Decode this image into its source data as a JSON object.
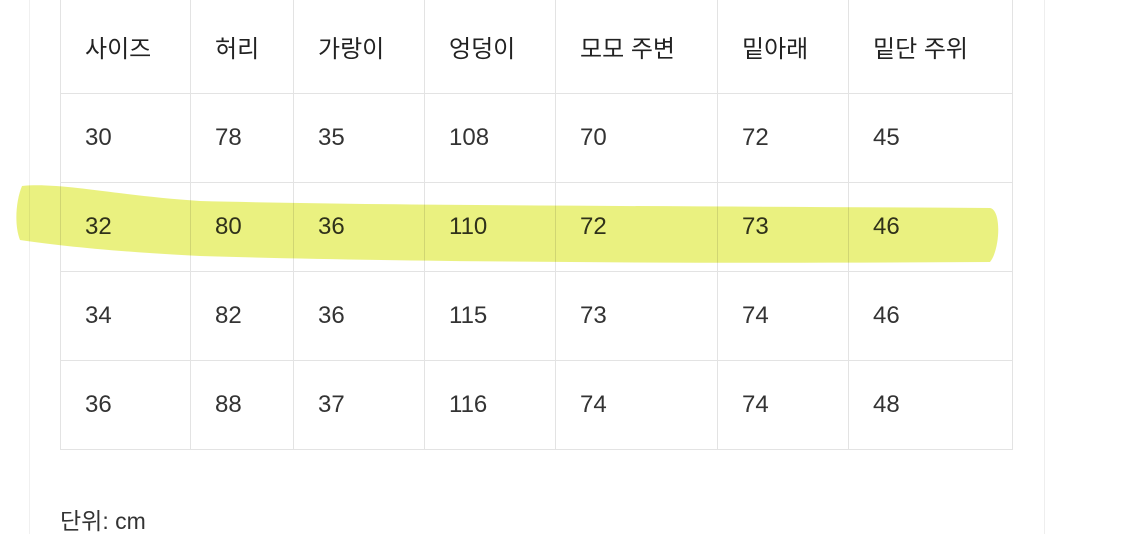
{
  "table": {
    "headers": [
      "사이즈",
      "허리",
      "가랑이",
      "엉덩이",
      "모모 주변",
      "밑아래",
      "밑단 주위"
    ],
    "rows": [
      [
        "30",
        "78",
        "35",
        "108",
        "70",
        "72",
        "45"
      ],
      [
        "32",
        "80",
        "36",
        "110",
        "72",
        "73",
        "46"
      ],
      [
        "34",
        "82",
        "36",
        "115",
        "73",
        "74",
        "46"
      ],
      [
        "36",
        "88",
        "37",
        "116",
        "74",
        "74",
        "48"
      ]
    ],
    "highlighted_row": 1
  },
  "unit_note": "단위: cm",
  "colors": {
    "highlight": "#e6ee6a",
    "border": "#e3e3e3"
  }
}
